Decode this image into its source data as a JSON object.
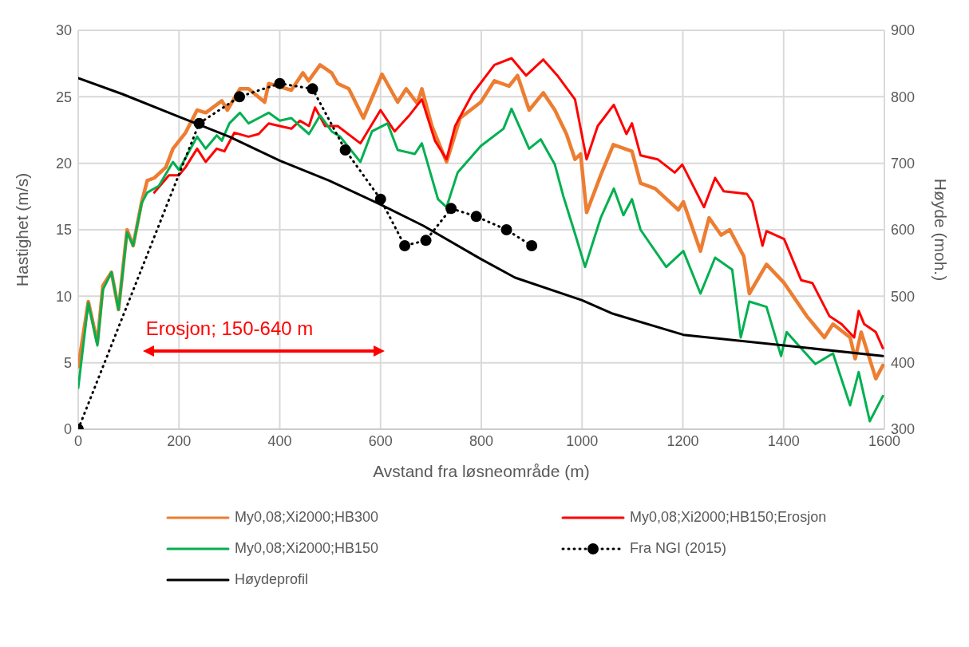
{
  "chart_data": {
    "type": "line",
    "xlabel": "Avstand fra løsneområde (m)",
    "ylabel": "Hastighet (m/s)",
    "y2label": "Høyde (moh.)",
    "xlim": [
      0,
      1600
    ],
    "xticks": [
      0,
      200,
      400,
      600,
      800,
      1000,
      1200,
      1400,
      1600
    ],
    "ylim": [
      0,
      30
    ],
    "yticks": [
      0,
      5,
      10,
      15,
      20,
      25,
      30
    ],
    "y2lim": [
      300,
      900
    ],
    "y2ticks": [
      300,
      400,
      500,
      600,
      700,
      800,
      900
    ],
    "grid": true,
    "legend": "bottom",
    "marker": "none",
    "line_style": "solid",
    "annotations": [
      "Erosjon; 150-640 m"
    ],
    "series": [
      {
        "name": "My0,08;Xi2000;HB300",
        "color": "#ed7d31",
        "x": [
          0,
          20,
          38,
          49,
          66,
          80,
          97,
          109,
          126,
          137,
          151,
          174,
          188,
          213,
          236,
          253,
          285,
          296,
          321,
          338,
          370,
          378,
          423,
          446,
          457,
          480,
          503,
          515,
          537,
          566,
          603,
          634,
          651,
          673,
          682,
          702,
          731,
          758,
          799,
          826,
          855,
          872,
          895,
          923,
          946,
          969,
          986,
          997,
          1009,
          1037,
          1062,
          1099,
          1116,
          1145,
          1191,
          1201,
          1235,
          1252,
          1276,
          1293,
          1321,
          1332,
          1366,
          1401,
          1446,
          1481,
          1498,
          1532,
          1542,
          1554,
          1583,
          1597
        ],
        "values": [
          4.7,
          9.6,
          6.5,
          10.8,
          11.8,
          9.0,
          15.0,
          13.8,
          17.1,
          18.7,
          18.9,
          19.7,
          21.1,
          22.3,
          24.0,
          23.8,
          24.7,
          24.0,
          25.6,
          25.6,
          24.6,
          26.0,
          25.5,
          26.8,
          26.2,
          27.4,
          26.8,
          26.0,
          25.6,
          23.4,
          26.7,
          24.6,
          25.6,
          24.5,
          25.6,
          22.8,
          20.1,
          23.4,
          24.6,
          26.2,
          25.8,
          26.6,
          24.0,
          25.3,
          24.0,
          22.2,
          20.3,
          20.7,
          16.3,
          19.1,
          21.4,
          20.9,
          18.5,
          18.1,
          16.5,
          17.1,
          13.4,
          15.9,
          14.6,
          15.0,
          13.0,
          10.2,
          12.4,
          11.0,
          8.5,
          6.9,
          7.9,
          6.9,
          5.3,
          7.3,
          3.8,
          4.8
        ]
      },
      {
        "name": "My0,08;Xi2000;HB150;Erosjon",
        "color": "#ff0000",
        "x": [
          151,
          180,
          200,
          213,
          236,
          253,
          275,
          290,
          310,
          338,
          358,
          378,
          400,
          423,
          440,
          458,
          470,
          490,
          515,
          560,
          600,
          628,
          657,
          682,
          708,
          731,
          748,
          782,
          826,
          860,
          889,
          923,
          951,
          986,
          1009,
          1031,
          1063,
          1088,
          1099,
          1116,
          1150,
          1184,
          1199,
          1242,
          1264,
          1281,
          1327,
          1338,
          1358,
          1366,
          1401,
          1435,
          1457,
          1491,
          1515,
          1540,
          1549,
          1560,
          1583,
          1597
        ],
        "values": [
          17.8,
          19.1,
          19.1,
          19.7,
          21.1,
          20.1,
          21.1,
          20.9,
          22.3,
          22.0,
          22.2,
          23.0,
          22.8,
          22.6,
          23.2,
          22.8,
          24.2,
          22.8,
          22.8,
          21.5,
          24.0,
          22.4,
          23.6,
          24.8,
          21.7,
          20.3,
          22.8,
          25.2,
          27.4,
          27.9,
          26.6,
          27.8,
          26.6,
          24.8,
          20.3,
          22.8,
          24.4,
          22.2,
          23.0,
          20.6,
          20.3,
          19.3,
          19.9,
          16.7,
          18.9,
          17.9,
          17.7,
          17.1,
          13.8,
          14.9,
          14.3,
          11.2,
          11.0,
          8.5,
          7.9,
          6.9,
          8.9,
          7.9,
          7.3,
          6.1
        ]
      },
      {
        "name": "My0,08;Xi2000;HB150",
        "color": "#00b050",
        "x": [
          0,
          20,
          38,
          49,
          66,
          80,
          97,
          109,
          126,
          137,
          160,
          188,
          200,
          236,
          253,
          275,
          285,
          300,
          321,
          338,
          358,
          378,
          400,
          423,
          440,
          458,
          480,
          503,
          520,
          560,
          583,
          614,
          634,
          668,
          682,
          714,
          731,
          753,
          799,
          844,
          860,
          895,
          918,
          946,
          963,
          986,
          1006,
          1037,
          1063,
          1082,
          1099,
          1116,
          1167,
          1201,
          1235,
          1264,
          1298,
          1315,
          1332,
          1366,
          1395,
          1406,
          1463,
          1498,
          1532,
          1549,
          1571,
          1597
        ],
        "values": [
          3.1,
          9.5,
          6.3,
          10.5,
          11.8,
          9.0,
          14.8,
          13.8,
          17.0,
          17.8,
          18.3,
          20.1,
          19.5,
          22.0,
          21.1,
          22.1,
          21.7,
          23.0,
          23.8,
          23.0,
          23.4,
          23.8,
          23.2,
          23.4,
          22.8,
          22.2,
          23.6,
          22.4,
          22.0,
          20.1,
          22.4,
          23.0,
          21.0,
          20.7,
          21.5,
          17.3,
          16.7,
          19.3,
          21.3,
          22.6,
          24.1,
          21.1,
          21.8,
          19.9,
          17.5,
          14.7,
          12.2,
          15.9,
          18.1,
          16.1,
          17.3,
          15.0,
          12.2,
          13.4,
          10.2,
          12.9,
          12.0,
          6.9,
          9.6,
          9.2,
          5.5,
          7.3,
          4.9,
          5.7,
          1.8,
          4.3,
          0.6,
          2.5
        ]
      },
      {
        "name": "Fra NGI (2015)",
        "color": "#000000",
        "marker": "circle",
        "line_style": "dotted",
        "x": [
          0,
          240,
          320,
          400,
          465,
          530,
          600,
          648,
          690,
          740,
          790,
          850,
          900
        ],
        "values": [
          0,
          23,
          25,
          26,
          25.6,
          21,
          17.3,
          13.8,
          14.2,
          16.6,
          16,
          15,
          13.8
        ]
      },
      {
        "name": "Høydeprofil",
        "color": "#000000",
        "axis": "y2",
        "x": [
          0,
          88,
          200,
          300,
          400,
          498,
          600,
          685,
          799,
          867,
          1000,
          1060,
          1201,
          1401,
          1597
        ],
        "values": [
          828,
          804,
          770,
          740,
          704,
          674,
          638,
          606,
          556,
          528,
          494,
          474,
          442,
          426,
          410
        ]
      }
    ]
  }
}
